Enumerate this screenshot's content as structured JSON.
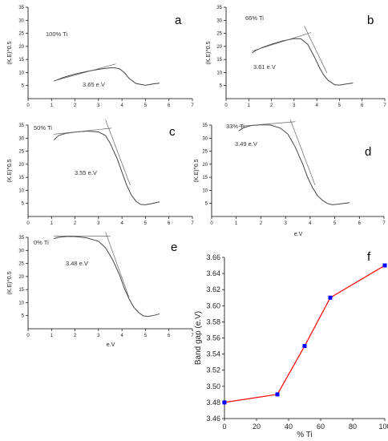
{
  "chart_data": [
    {
      "panel": "a",
      "type": "line",
      "title": "",
      "xlabel": "",
      "ylabel": "(K.E)^0.5",
      "xlim": [
        0,
        7
      ],
      "ylim": [
        0,
        35
      ],
      "xticks": [
        "0",
        "1",
        "2",
        "3",
        "4",
        "5",
        "6",
        "7"
      ],
      "yticks": [
        "5",
        "10",
        "15",
        "20",
        "25",
        "30",
        "35"
      ],
      "annotations": [
        "100% Ti",
        "3.65 e.V"
      ],
      "series": [
        {
          "values_x": [
            1.1,
            1.5,
            2.0,
            2.5,
            3.0,
            3.3,
            3.5,
            3.7,
            3.9,
            4.1,
            4.3,
            4.6,
            5.0,
            5.3,
            5.6
          ],
          "values_y": [
            6.7,
            8.1,
            9.4,
            10.4,
            11.2,
            11.6,
            11.8,
            11.8,
            11.4,
            10.0,
            7.8,
            5.8,
            5.1,
            5.6,
            5.9
          ]
        },
        {
          "role": "tangent",
          "values_x": [
            1.1,
            3.75
          ],
          "values_y": [
            6.8,
            13.3
          ]
        }
      ]
    },
    {
      "panel": "b",
      "type": "line",
      "title": "",
      "xlabel": "",
      "ylabel": "(K.E)^0.5",
      "xlim": [
        0,
        7
      ],
      "ylim": [
        0,
        35
      ],
      "xticks": [
        "0",
        "1",
        "2",
        "3",
        "4",
        "5",
        "6",
        "7"
      ],
      "yticks": [
        "5",
        "10",
        "15",
        "20",
        "25",
        "30",
        "35"
      ],
      "annotations": [
        "66% Ti",
        "3.61 e.V"
      ],
      "series": [
        {
          "values_x": [
            1.15,
            1.3,
            1.6,
            2.0,
            2.5,
            3.0,
            3.3,
            3.6,
            3.9,
            4.1,
            4.3,
            4.5,
            4.8,
            5.0,
            5.3,
            5.6
          ],
          "values_y": [
            17.5,
            18.4,
            19.6,
            20.8,
            22.1,
            23.0,
            22.9,
            20.8,
            15.9,
            12.2,
            9.1,
            7.0,
            5.3,
            5.2,
            5.6,
            6.0
          ]
        },
        {
          "role": "tangent",
          "values_x": [
            1.15,
            3.75
          ],
          "values_y": [
            18.2,
            25.3
          ]
        },
        {
          "role": "tangent",
          "values_x": [
            3.45,
            4.45
          ],
          "values_y": [
            27.8,
            9.8
          ]
        }
      ]
    },
    {
      "panel": "c",
      "type": "line",
      "title": "",
      "xlabel": "",
      "ylabel": "(K.E)^0.5",
      "xlim": [
        0,
        7
      ],
      "ylim": [
        0,
        35
      ],
      "xticks": [
        "0",
        "1",
        "2",
        "3",
        "4",
        "5",
        "6",
        "7"
      ],
      "yticks": [
        "5",
        "10",
        "15",
        "20",
        "25",
        "30",
        "35"
      ],
      "annotations": [
        "50% Ti",
        "3.55 e.V"
      ],
      "series": [
        {
          "values_x": [
            1.1,
            1.3,
            1.6,
            2.0,
            2.5,
            3.0,
            3.3,
            3.5,
            3.8,
            4.0,
            4.2,
            4.4,
            4.6,
            4.8,
            5.0,
            5.3,
            5.6
          ],
          "values_y": [
            29.3,
            31.0,
            31.8,
            32.3,
            32.7,
            32.4,
            31.0,
            28.0,
            22.0,
            17.0,
            12.0,
            8.2,
            5.8,
            4.6,
            4.5,
            5.0,
            5.6
          ]
        },
        {
          "role": "tangent",
          "values_x": [
            1.1,
            3.55
          ],
          "values_y": [
            31.5,
            33.8
          ]
        },
        {
          "role": "tangent",
          "values_x": [
            3.3,
            4.35
          ],
          "values_y": [
            37.0,
            12.0
          ]
        }
      ]
    },
    {
      "panel": "d",
      "type": "line",
      "title": "",
      "xlabel": "e.V",
      "ylabel": "(K.E)^0.5",
      "xlim": [
        0,
        7
      ],
      "ylim": [
        0,
        35
      ],
      "xticks": [
        "0",
        "1",
        "2",
        "3",
        "4",
        "5",
        "6",
        "7"
      ],
      "yticks": [
        "5",
        "10",
        "15",
        "20",
        "25",
        "30",
        "35"
      ],
      "annotations": [
        "33% Ti",
        "3.49 e.V"
      ],
      "series": [
        {
          "values_x": [
            1.1,
            1.3,
            1.6,
            2.0,
            2.4,
            2.8,
            3.1,
            3.4,
            3.7,
            3.9,
            4.1,
            4.3,
            4.5,
            4.7,
            4.9,
            5.2,
            5.6
          ],
          "values_y": [
            32.8,
            34.0,
            34.8,
            35.1,
            35.0,
            33.8,
            31.5,
            26.5,
            20.0,
            15.0,
            11.0,
            8.0,
            6.2,
            5.0,
            4.5,
            4.8,
            5.3
          ]
        },
        {
          "role": "tangent",
          "values_x": [
            1.1,
            3.4
          ],
          "values_y": [
            34.5,
            36.3
          ]
        },
        {
          "role": "tangent",
          "values_x": [
            3.2,
            4.2
          ],
          "values_y": [
            37.0,
            12.0
          ]
        }
      ]
    },
    {
      "panel": "e",
      "type": "line",
      "title": "",
      "xlabel": "e.V",
      "ylabel": "(K.E)^0.5",
      "xlim": [
        0,
        7
      ],
      "ylim": [
        0,
        35
      ],
      "xticks": [
        "0",
        "1",
        "2",
        "3",
        "4",
        "5",
        "6",
        "7"
      ],
      "yticks": [
        "5",
        "10",
        "15",
        "20",
        "25",
        "30",
        "35"
      ],
      "annotations": [
        "0% Ti",
        "3.48 e.V"
      ],
      "series": [
        {
          "values_x": [
            1.1,
            1.3,
            1.6,
            2.0,
            2.5,
            3.0,
            3.3,
            3.6,
            3.9,
            4.1,
            4.3,
            4.5,
            4.7,
            4.9,
            5.1,
            5.4,
            5.6
          ],
          "values_y": [
            34.5,
            35.0,
            35.3,
            35.3,
            34.8,
            33.5,
            31.0,
            26.5,
            20.5,
            15.5,
            11.5,
            8.3,
            6.3,
            5.0,
            4.7,
            5.2,
            5.7
          ]
        },
        {
          "role": "tangent",
          "values_x": [
            1.1,
            3.5
          ],
          "values_y": [
            35.5,
            35.5
          ]
        },
        {
          "role": "tangent",
          "values_x": [
            3.3,
            4.3
          ],
          "values_y": [
            37.0,
            12.0
          ]
        }
      ]
    },
    {
      "panel": "f",
      "type": "line",
      "title": "",
      "xlabel": "% Ti",
      "ylabel": "Band gap (e.V)",
      "xlim": [
        0,
        100
      ],
      "ylim": [
        3.46,
        3.66
      ],
      "xticks": [
        "0",
        "20",
        "40",
        "60",
        "80",
        "100"
      ],
      "yticks": [
        "3.46",
        "3.48",
        "3.50",
        "3.52",
        "3.54",
        "3.56",
        "3.58",
        "3.60",
        "3.62",
        "3.64",
        "3.66"
      ],
      "series": [
        {
          "x": [
            0,
            33,
            50,
            66,
            100
          ],
          "values": [
            3.48,
            3.49,
            3.55,
            3.61,
            3.65
          ],
          "color": "#ff0000",
          "marker_color": "#0000ff"
        }
      ]
    }
  ],
  "panel_letters": [
    "a",
    "b",
    "c",
    "d",
    "e",
    "f"
  ]
}
